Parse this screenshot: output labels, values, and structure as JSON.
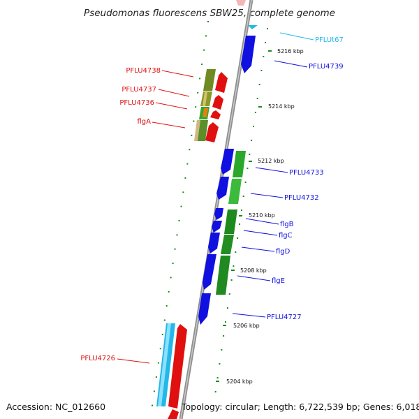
{
  "title": "Pseudomonas fluorescens SBW25, complete genome",
  "footer": {
    "accession": "Accession: NC_012660",
    "topology": "Topology: circular; Length: 6,722,539 bp; Genes: 6,018"
  },
  "colors": {
    "forward_cds": "#e01010",
    "reverse_cds": "#1010e0",
    "trna": "#22b8e8",
    "backbone": "#909090",
    "dots": "#1a8a1a",
    "gc_dark": "#1e8a1e",
    "gc_light": "#4cc84c",
    "olive": "#7a8a2a"
  },
  "scale_ticks": [
    "5216 kbp",
    "5214 kbp",
    "5212 kbp",
    "5210 kbp",
    "5208 kbp",
    "5206 kbp",
    "5204 kbp"
  ],
  "gene_labels": {
    "left": [
      "PFLU4738",
      "PFLU4737",
      "PFLU4736",
      "flgA",
      "PFLU4726"
    ],
    "right": [
      "PFLUt67",
      "PFLU4739",
      "PFLU4733",
      "PFLU4732",
      "flgB",
      "flgC",
      "flgD",
      "flgE",
      "PFLU4727"
    ]
  }
}
